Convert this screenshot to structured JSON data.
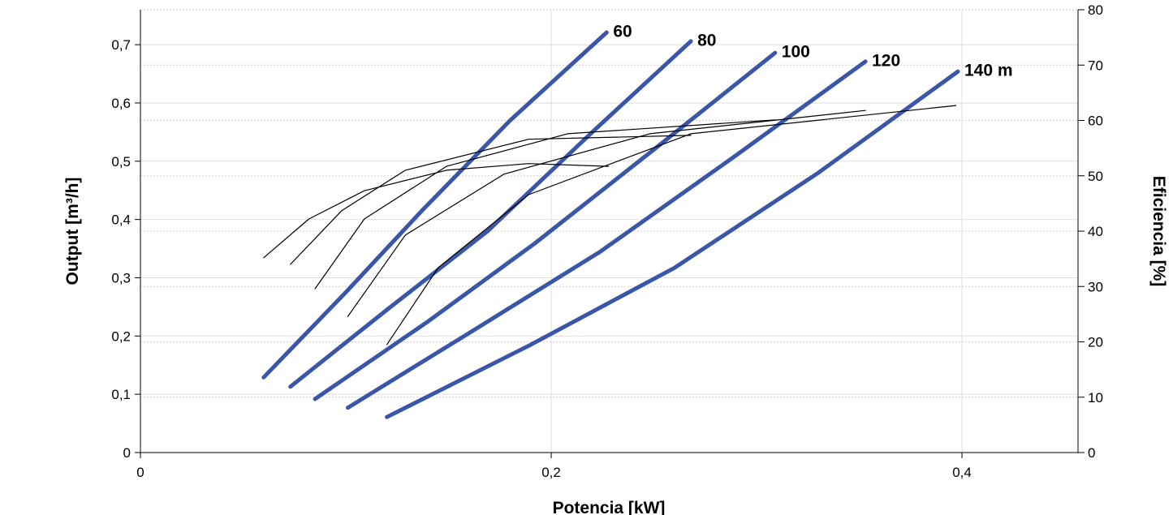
{
  "chart_data": {
    "type": "line",
    "xlabel": "Potencia [kW]",
    "ylabel": "Output [m³/h]",
    "y2label": "Eficiencia [%]",
    "xlim": [
      0,
      0.4565
    ],
    "ylim": [
      0,
      0.76
    ],
    "y2lim": [
      0,
      80
    ],
    "xticks": [
      0,
      {
        "value": 0.2,
        "label": "0,2"
      },
      {
        "value": 0.4,
        "label": "0,4"
      }
    ],
    "yticks": [
      0,
      {
        "value": 0.1,
        "label": "0,1"
      },
      {
        "value": 0.2,
        "label": "0,2"
      },
      {
        "value": 0.3,
        "label": "0,3"
      },
      {
        "value": 0.4,
        "label": "0,4"
      },
      {
        "value": 0.5,
        "label": "0,5"
      },
      {
        "value": 0.6,
        "label": "0,6"
      },
      {
        "value": 0.7,
        "label": "0,7"
      }
    ],
    "y2ticks": [
      0,
      10,
      20,
      30,
      40,
      50,
      60,
      70,
      80
    ],
    "grid": true,
    "series": [
      {
        "name": "60",
        "color": "#3a56a8",
        "x": [
          0.06,
          0.1,
          0.137,
          0.18,
          0.227
        ],
        "values": [
          0.129,
          0.275,
          0.415,
          0.57,
          0.721
        ]
      },
      {
        "name": "80",
        "color": "#3a56a8",
        "x": [
          0.073,
          0.12,
          0.169,
          0.22,
          0.268
        ],
        "values": [
          0.113,
          0.245,
          0.38,
          0.55,
          0.706
        ]
      },
      {
        "name": "100",
        "color": "#3a56a8",
        "x": [
          0.085,
          0.14,
          0.192,
          0.25,
          0.309
        ],
        "values": [
          0.092,
          0.225,
          0.359,
          0.52,
          0.686
        ]
      },
      {
        "name": "120",
        "color": "#3a56a8",
        "x": [
          0.101,
          0.16,
          0.224,
          0.29,
          0.353
        ],
        "values": [
          0.077,
          0.205,
          0.345,
          0.51,
          0.671
        ]
      },
      {
        "name": "140 m",
        "color": "#3a56a8",
        "x": [
          0.12,
          0.19,
          0.26,
          0.33,
          0.398
        ],
        "values": [
          0.061,
          0.185,
          0.317,
          0.48,
          0.654
        ]
      },
      {
        "axis": "y2",
        "color": "#000000",
        "x": [
          0.06,
          0.082,
          0.109,
          0.149,
          0.189,
          0.228
        ],
        "values": [
          35.2,
          42.2,
          47.3,
          51.0,
          52.2,
          51.7
        ]
      },
      {
        "axis": "y2",
        "color": "#000000",
        "x": [
          0.073,
          0.098,
          0.129,
          0.189,
          0.268
        ],
        "values": [
          34.0,
          43.7,
          51.0,
          56.6,
          57.3
        ]
      },
      {
        "axis": "y2",
        "color": "#000000",
        "x": [
          0.085,
          0.109,
          0.149,
          0.208,
          0.309
        ],
        "values": [
          29.6,
          42.2,
          51.7,
          57.6,
          60.1
        ]
      },
      {
        "axis": "y2",
        "color": "#000000",
        "x": [
          0.101,
          0.129,
          0.177,
          0.248,
          0.353
        ],
        "values": [
          24.6,
          39.3,
          50.3,
          57.6,
          61.8
        ]
      },
      {
        "axis": "y2",
        "color": "#000000",
        "x": [
          0.12,
          0.145,
          0.189,
          0.268,
          0.397
        ],
        "values": [
          19.5,
          33.4,
          46.6,
          57.6,
          62.7
        ]
      }
    ]
  }
}
